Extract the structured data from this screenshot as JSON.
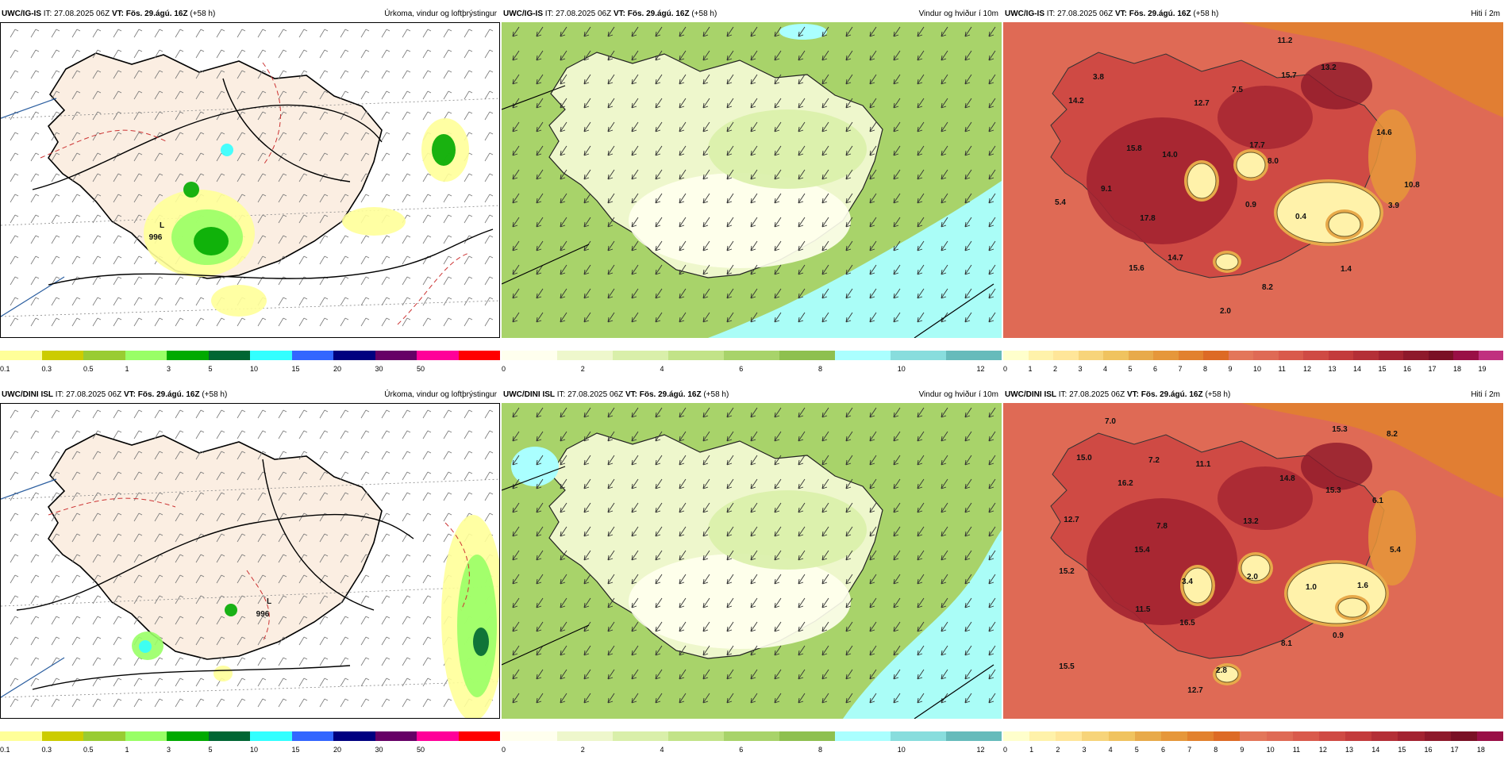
{
  "rows": [
    {
      "model": "UWC/IG-IS",
      "it_label": "IT:",
      "it": "27.08.2025 06Z",
      "vt_label": "VT:",
      "vt": "Fös. 29.ágú. 16Z",
      "lead": "(+58 h)",
      "panels": [
        {
          "title": "Úrkoma, vindur og loftþrýstingur",
          "scale_ticks": [
            "0.1",
            "0.3",
            "0.5",
            "1",
            "3",
            "5",
            "10",
            "15",
            "20",
            "30",
            "50"
          ],
          "labels": [
            {
              "t": "996"
            }
          ]
        },
        {
          "title": "Vindur og hviður í 10m",
          "scale_ticks": [
            "0",
            "2",
            "4",
            "6",
            "8",
            "10",
            "12"
          ],
          "labels": []
        },
        {
          "title": "Hiti í 2m",
          "scale_ticks": [
            "0",
            "1",
            "2",
            "3",
            "4",
            "5",
            "6",
            "7",
            "8",
            "9",
            "10",
            "11",
            "12",
            "13",
            "14",
            "15",
            "16",
            "17",
            "18",
            "19"
          ],
          "labels": [
            {
              "t": "11.2"
            },
            {
              "t": "3.8"
            },
            {
              "t": "15.7"
            },
            {
              "t": "13.2"
            },
            {
              "t": "14.2"
            },
            {
              "t": "12.7"
            },
            {
              "t": "7.5"
            },
            {
              "t": "15.8"
            },
            {
              "t": "14.0"
            },
            {
              "t": "17.7"
            },
            {
              "t": "14.6"
            },
            {
              "t": "8.0"
            },
            {
              "t": "9.1"
            },
            {
              "t": "10.8"
            },
            {
              "t": "5.4"
            },
            {
              "t": "0.9"
            },
            {
              "t": "3.9"
            },
            {
              "t": "17.8"
            },
            {
              "t": "0.4"
            },
            {
              "t": "14.7"
            },
            {
              "t": "15.6"
            },
            {
              "t": "1.4"
            },
            {
              "t": "8.2"
            },
            {
              "t": "2.0"
            }
          ]
        }
      ]
    },
    {
      "model": "UWC/DINI ISL",
      "it_label": "IT:",
      "it": "27.08.2025 06Z",
      "vt_label": "VT:",
      "vt": "Fös. 29.ágú. 16Z",
      "lead": "(+58 h)",
      "panels": [
        {
          "title": "Úrkoma, vindur og loftþrýstingur",
          "scale_ticks": [
            "0.1",
            "0.3",
            "0.5",
            "1",
            "3",
            "5",
            "10",
            "15",
            "20",
            "30",
            "50"
          ],
          "labels": [
            {
              "t": "996"
            }
          ]
        },
        {
          "title": "Vindur og hviður í 10m",
          "scale_ticks": [
            "0",
            "2",
            "4",
            "6",
            "8",
            "10",
            "12"
          ],
          "labels": []
        },
        {
          "title": "Hiti í 2m",
          "scale_ticks": [
            "0",
            "1",
            "2",
            "3",
            "4",
            "5",
            "6",
            "7",
            "8",
            "9",
            "10",
            "11",
            "12",
            "13",
            "14",
            "15",
            "16",
            "17",
            "18"
          ],
          "labels": [
            {
              "t": "7.0"
            },
            {
              "t": "15.3"
            },
            {
              "t": "8.2"
            },
            {
              "t": "15.0"
            },
            {
              "t": "7.2"
            },
            {
              "t": "11.1"
            },
            {
              "t": "14.8"
            },
            {
              "t": "16.2"
            },
            {
              "t": "15.3"
            },
            {
              "t": "6.1"
            },
            {
              "t": "12.7"
            },
            {
              "t": "7.8"
            },
            {
              "t": "13.2"
            },
            {
              "t": "15.4"
            },
            {
              "t": "5.4"
            },
            {
              "t": "15.2"
            },
            {
              "t": "3.4"
            },
            {
              "t": "2.0"
            },
            {
              "t": "1.0"
            },
            {
              "t": "1.6"
            },
            {
              "t": "11.5"
            },
            {
              "t": "16.5"
            },
            {
              "t": "0.9"
            },
            {
              "t": "8.1"
            },
            {
              "t": "15.5"
            },
            {
              "t": "2.8"
            },
            {
              "t": "12.7"
            }
          ]
        }
      ]
    }
  ],
  "colors": {
    "precip": [
      "#ffff99",
      "#cccc00",
      "#99cc33",
      "#99ff66",
      "#00aa00",
      "#006633",
      "#33ffff",
      "#3366ff",
      "#000080",
      "#660066",
      "#ff0099",
      "#ff0000"
    ],
    "wind": [
      "#ffffee",
      "#eef7cc",
      "#d9efaa",
      "#c2e388",
      "#a8d36a",
      "#8ec04f",
      "#aaffff",
      "#88dddd",
      "#66bbbb"
    ],
    "temp": [
      "#ffffcc",
      "#fff2aa",
      "#ffe699",
      "#f7d47a",
      "#f0c35f",
      "#e8aa4a",
      "#e6973a",
      "#e2812e",
      "#dd6a25",
      "#e3765a",
      "#df6a55",
      "#d95a4c",
      "#cf4a44",
      "#c33b3c",
      "#b42f37",
      "#a32331",
      "#8e192b",
      "#7a1025",
      "#990f46",
      "#c0307f"
    ],
    "land": "#fbeee2",
    "sea": "#ffffff",
    "coast": "#000000",
    "isobar": "#000000",
    "isotherm": "#cc3333"
  }
}
